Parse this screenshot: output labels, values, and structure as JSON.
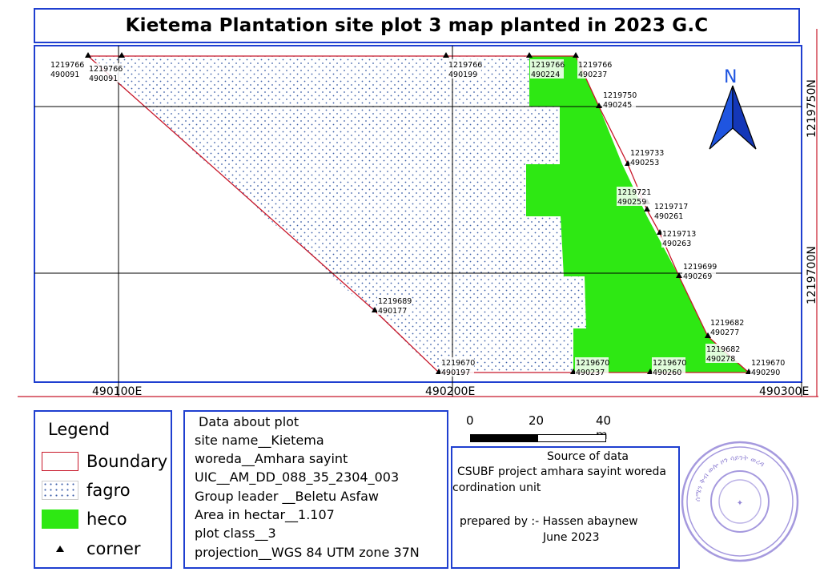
{
  "title": "Kietema Plantation site plot 3 map planted in 2023 G.C",
  "north_arrow": {
    "label": "N"
  },
  "grid": {
    "x_labels": [
      "490100E",
      "490200E",
      "490300E"
    ],
    "y_labels": [
      "1219750N",
      "1219700N"
    ]
  },
  "corners": [
    {
      "n": "1219766",
      "e": "490091"
    },
    {
      "n": "1219766",
      "e": "490091"
    },
    {
      "n": "1219766",
      "e": "490199"
    },
    {
      "n": "1219766",
      "e": "490224"
    },
    {
      "n": "1219766",
      "e": "490237"
    },
    {
      "n": "1219750",
      "e": "490245"
    },
    {
      "n": "1219733",
      "e": "490253"
    },
    {
      "n": "1219721",
      "e": "490259"
    },
    {
      "n": "1219717",
      "e": "490261"
    },
    {
      "n": "1219713",
      "e": "490263"
    },
    {
      "n": "1219699",
      "e": "490269"
    },
    {
      "n": "1219689",
      "e": "490177"
    },
    {
      "n": "1219682",
      "e": "490277"
    },
    {
      "n": "1219682",
      "e": "490278"
    },
    {
      "n": "1219670",
      "e": "490197"
    },
    {
      "n": "1219670",
      "e": "490237"
    },
    {
      "n": "1219670",
      "e": "490260"
    },
    {
      "n": "1219670",
      "e": "490290"
    }
  ],
  "legend": {
    "title": "Legend",
    "items": [
      {
        "label": "Boundary",
        "color": "#c8182a"
      },
      {
        "label": "fagro",
        "color": "#3d5fa8"
      },
      {
        "label": "heco",
        "color": "#2ee813"
      },
      {
        "label": "corner",
        "color": "#000000"
      }
    ]
  },
  "plot_info": {
    "heading": "Data about plot",
    "site_name": "site name__Kietema",
    "woreda": "woreda__Amhara sayint",
    "uic": "UIC__AM_DD_088_35_2304_003",
    "group_leader": "Group leader __Beletu Asfaw",
    "area": "Area in hectar__1.107",
    "plot_class": "plot class__3",
    "projection": "projection__WGS 84 UTM zone 37N"
  },
  "scale_bar": {
    "labels": [
      "0",
      "20",
      "40 m"
    ]
  },
  "source": {
    "heading": "Source of data",
    "line1": "CSUBF project amhara sayint woreda",
    "line2": "cordination unit",
    "prepared": "prepared by :- Hassen abaynew",
    "date": "June 2023"
  },
  "seal": {
    "text": "ሰሜን ቅብ ወሎ ዞን ሳይንት ወረዳ"
  }
}
